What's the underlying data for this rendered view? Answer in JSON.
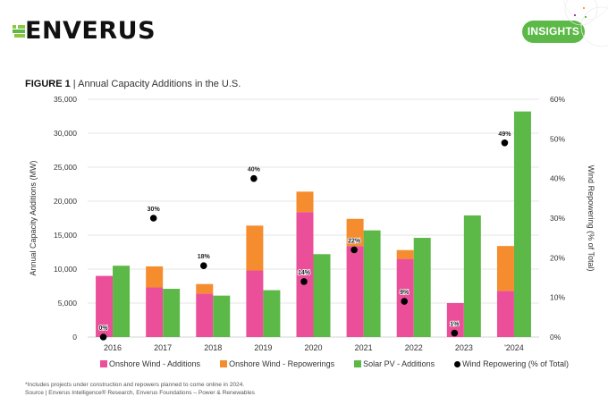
{
  "brand": {
    "logo_text": "ENVERUS",
    "badge_label": "INSIGHTS",
    "accent_color": "#5cb947",
    "logo_mark_color": "#8dc63f"
  },
  "figure": {
    "label": "FIGURE 1",
    "separator": " | ",
    "title": "Annual Capacity Additions in the U.S."
  },
  "chart_data": {
    "type": "bar",
    "subtype": "grouped-stacked bar with secondary-axis scatter",
    "title": "Annual Capacity Additions in the U.S.",
    "categories": [
      "2016",
      "2017",
      "2018",
      "2019",
      "2020",
      "2021",
      "2022",
      "2023",
      "'2024"
    ],
    "ylabel": "Annual Capacity Additions (MW)",
    "y2label": "Wind Repowering (% of Total)",
    "ylim": [
      0,
      35000
    ],
    "y2lim": [
      0,
      60
    ],
    "yticks": [
      "0",
      "5,000",
      "10,000",
      "15,000",
      "20,000",
      "25,000",
      "30,000",
      "35,000"
    ],
    "y2ticks": [
      "0%",
      "10%",
      "20%",
      "30%",
      "40%",
      "50%",
      "60%"
    ],
    "grid": true,
    "legend_position": "bottom",
    "series": [
      {
        "name": "Onshore Wind - Additions",
        "color": "#ec4f9a",
        "stack": "wind",
        "values": [
          9000,
          7300,
          6400,
          9800,
          18400,
          13400,
          11500,
          5000,
          6800
        ]
      },
      {
        "name": "Onshore Wind - Repowerings",
        "color": "#f58d2e",
        "stack": "wind",
        "values": [
          0,
          3100,
          1400,
          6600,
          3000,
          4000,
          1300,
          0,
          6600
        ]
      },
      {
        "name": "Solar PV - Additions",
        "color": "#5cb947",
        "stack": "solar",
        "values": [
          10500,
          7100,
          6100,
          6900,
          12200,
          15700,
          14600,
          17900,
          33200
        ]
      },
      {
        "name": "Wind Repowering (% of Total)",
        "color": "#000000",
        "type": "scatter",
        "axis": "right",
        "values": [
          0,
          30,
          18,
          40,
          14,
          22,
          9,
          1,
          49
        ],
        "labels": [
          "0%",
          "30%",
          "18%",
          "40%",
          "14%",
          "22%",
          "9%",
          "1%",
          "49%"
        ]
      }
    ]
  },
  "footnote": {
    "line1": "*Includes projects under construction and repowers planned to come online in 2024.",
    "line2": "Source | Enverus Intelligence® Research, Enverus Foundations – Power & Renewables"
  }
}
